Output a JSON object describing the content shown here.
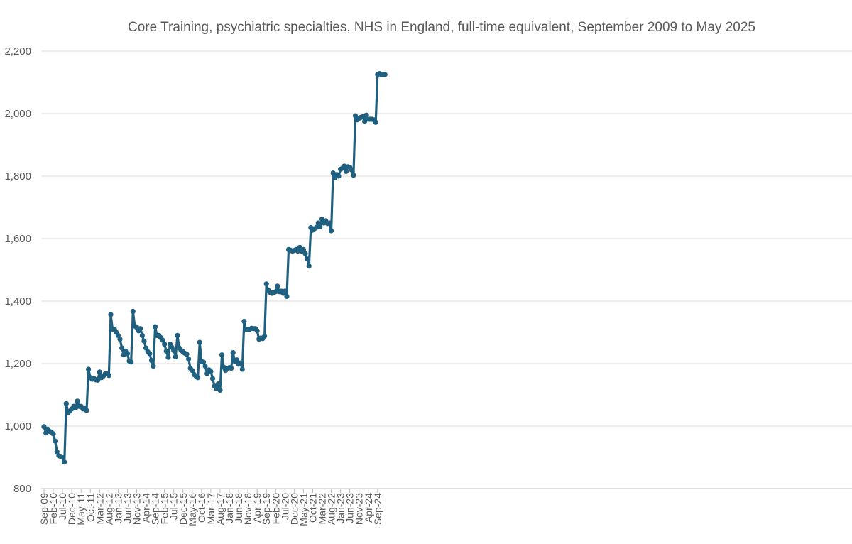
{
  "chart_data": {
    "type": "line",
    "title": "Core Training, psychiatric specialties, NHS in England, full-time equivalent, September 2009 to May 2025",
    "xlabel": "",
    "ylabel": "",
    "ylim": [
      800,
      2200
    ],
    "yticks": [
      800,
      1000,
      1200,
      1400,
      1600,
      1800,
      2000,
      2200
    ],
    "ytick_labels": [
      "800",
      "1,000",
      "1,200",
      "1,400",
      "1,600",
      "1,800",
      "2,000",
      "2,200"
    ],
    "grid": true,
    "legend": "none",
    "line_color": "#1f5f7f",
    "start": "Sep-09",
    "x_labels": [
      "Sep-09",
      "Feb-10",
      "Jul-10",
      "Dec-10",
      "May-11",
      "Oct-11",
      "Mar-12",
      "Aug-12",
      "Jan-13",
      "Jun-13",
      "Nov-13",
      "Apr-14",
      "Sep-14",
      "Feb-15",
      "Jul-15",
      "Dec-15",
      "May-16",
      "Oct-16",
      "Mar-17",
      "Aug-17",
      "Jan-18",
      "Jun-18",
      "Nov-18",
      "Apr-19",
      "Sep-19",
      "Feb-20",
      "Jul-20",
      "Dec-20",
      "May-21",
      "Oct-21",
      "Mar-22",
      "Aug-22",
      "Jan-23",
      "Jun-23",
      "Nov-23",
      "Apr-24",
      "Sep-24"
    ],
    "series": [
      {
        "name": "Core Training FTE",
        "values": [
          998,
          978,
          990,
          983,
          980,
          975,
          952,
          918,
          905,
          903,
          900,
          885,
          1072,
          1043,
          1048,
          1055,
          1063,
          1058,
          1080,
          1063,
          1063,
          1055,
          1057,
          1050,
          1182,
          1155,
          1150,
          1152,
          1148,
          1147,
          1173,
          1155,
          1160,
          1167,
          1167,
          1162,
          1357,
          1310,
          1310,
          1300,
          1290,
          1278,
          1250,
          1228,
          1240,
          1232,
          1208,
          1205,
          1367,
          1320,
          1316,
          1305,
          1312,
          1290,
          1272,
          1250,
          1238,
          1232,
          1210,
          1192,
          1318,
          1290,
          1290,
          1283,
          1275,
          1262,
          1240,
          1220,
          1262,
          1252,
          1242,
          1222,
          1290,
          1250,
          1242,
          1238,
          1233,
          1230,
          1215,
          1185,
          1178,
          1165,
          1160,
          1155,
          1268,
          1207,
          1205,
          1192,
          1168,
          1180,
          1175,
          1152,
          1128,
          1120,
          1135,
          1115,
          1228,
          1188,
          1178,
          1185,
          1187,
          1185,
          1235,
          1207,
          1212,
          1198,
          1202,
          1182,
          1335,
          1310,
          1308,
          1310,
          1313,
          1312,
          1312,
          1305,
          1278,
          1282,
          1280,
          1288,
          1455,
          1435,
          1428,
          1425,
          1428,
          1430,
          1448,
          1430,
          1432,
          1425,
          1432,
          1415,
          1565,
          1563,
          1560,
          1562,
          1565,
          1560,
          1572,
          1560,
          1565,
          1552,
          1535,
          1512,
          1635,
          1627,
          1632,
          1636,
          1650,
          1638,
          1662,
          1650,
          1657,
          1648,
          1650,
          1625,
          1810,
          1795,
          1805,
          1800,
          1822,
          1825,
          1832,
          1815,
          1830,
          1828,
          1820,
          1803,
          1993,
          1980,
          1985,
          1988,
          1990,
          1975,
          1995,
          1982,
          1982,
          1982,
          1980,
          1972,
          2125,
          2128,
          2125,
          2125,
          2125
        ]
      }
    ]
  }
}
